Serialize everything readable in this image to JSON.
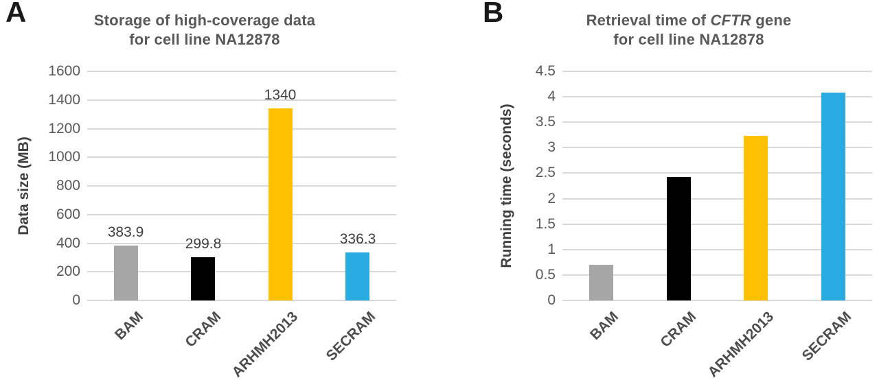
{
  "figure_caption": "Two-panel bar chart comparing genomic data formats for cell line NA12878",
  "colors": {
    "bar_gray": "#a6a6a6",
    "bar_black": "#000000",
    "bar_yellow": "#ffc000",
    "bar_blue": "#29abe2",
    "gridline": "#d9d9d9",
    "title_text": "#595959",
    "tick_text": "#595959",
    "axis_title_text": "#404040",
    "category_text": "#4d4d4d",
    "panel_letter_text": "#1a1a1a"
  },
  "chart_data": [
    {
      "type": "bar",
      "panel_letter": "A",
      "title": "Storage of high-coverage data for cell line NA12878",
      "title_rich": [
        [
          {
            "t": "Storage of high-coverage data"
          }
        ],
        [
          {
            "t": "for cell line NA12878"
          }
        ]
      ],
      "categories": [
        "BAM",
        "CRAM",
        "ARHMH2013",
        "SECRAM"
      ],
      "values": [
        383.9,
        299.8,
        1340,
        336.3
      ],
      "value_labels": [
        "383.9",
        "299.8",
        "1340",
        "336.3"
      ],
      "show_value_labels": true,
      "bar_colors": [
        "#a6a6a6",
        "#000000",
        "#ffc000",
        "#29abe2"
      ],
      "xlabel": "",
      "ylabel": "Data size (MB)",
      "ylim": [
        0,
        1600
      ],
      "ytick_step": 200,
      "yticks": [
        "0",
        "200",
        "400",
        "600",
        "800",
        "1000",
        "1200",
        "1400",
        "1600"
      ],
      "grid": true,
      "legend": false
    },
    {
      "type": "bar",
      "panel_letter": "B",
      "title": "Retrieval time of CFTR gene for cell line NA12878",
      "title_rich": [
        [
          {
            "t": "Retrieval time of "
          },
          {
            "t": "CFTR",
            "italic": true
          },
          {
            "t": " gene"
          }
        ],
        [
          {
            "t": "for cell line NA12878"
          }
        ]
      ],
      "categories": [
        "BAM",
        "CRAM",
        "ARHMH2013",
        "SECRAM"
      ],
      "values": [
        0.7,
        2.42,
        3.24,
        4.08
      ],
      "value_labels": [],
      "show_value_labels": false,
      "bar_colors": [
        "#a6a6a6",
        "#000000",
        "#ffc000",
        "#29abe2"
      ],
      "xlabel": "",
      "ylabel": "Running time (seconds)",
      "ylim": [
        0,
        4.5
      ],
      "ytick_step": 0.5,
      "yticks": [
        "0",
        "0.5",
        "1",
        "1.5",
        "2",
        "2.5",
        "3",
        "3.5",
        "4",
        "4.5"
      ],
      "grid": true,
      "legend": false
    }
  ]
}
